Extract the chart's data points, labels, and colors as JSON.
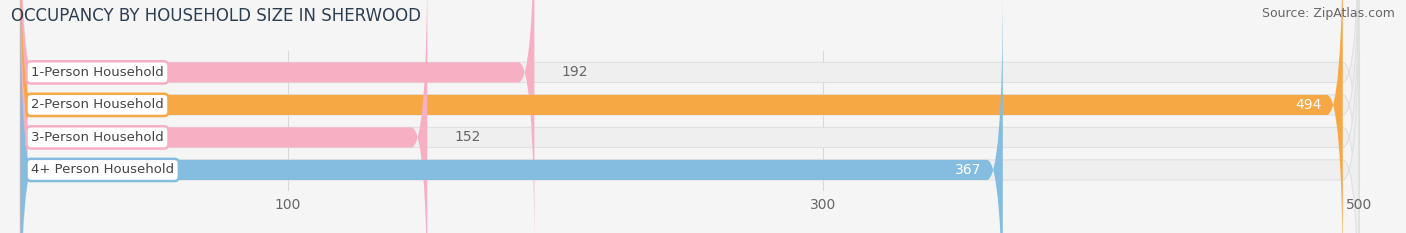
{
  "title": "OCCUPANCY BY HOUSEHOLD SIZE IN SHERWOOD",
  "source": "Source: ZipAtlas.com",
  "categories": [
    "1-Person Household",
    "2-Person Household",
    "3-Person Household",
    "4+ Person Household"
  ],
  "values": [
    192,
    494,
    152,
    367
  ],
  "bar_colors": [
    "#f7afc4",
    "#f5a844",
    "#f7afc4",
    "#85bde0"
  ],
  "track_color": "#efefef",
  "track_edge_color": "#e0e0e0",
  "label_bg_color": "#ffffff",
  "label_border_colors": [
    "#f7afc4",
    "#f5a844",
    "#f7afc4",
    "#85bde0"
  ],
  "xlim_data": [
    0,
    500
  ],
  "xlim_display": [
    -5,
    515
  ],
  "xticks": [
    100,
    300,
    500
  ],
  "value_label_colors": [
    "#666666",
    "#ffffff",
    "#666666",
    "#ffffff"
  ],
  "value_label_inside": [
    false,
    true,
    false,
    true
  ],
  "bar_height": 0.62,
  "figsize": [
    14.06,
    2.33
  ],
  "dpi": 100,
  "title_fontsize": 12,
  "source_fontsize": 9,
  "tick_fontsize": 10,
  "bar_label_fontsize": 10,
  "cat_label_fontsize": 9.5,
  "bg_color": "#f5f5f5"
}
